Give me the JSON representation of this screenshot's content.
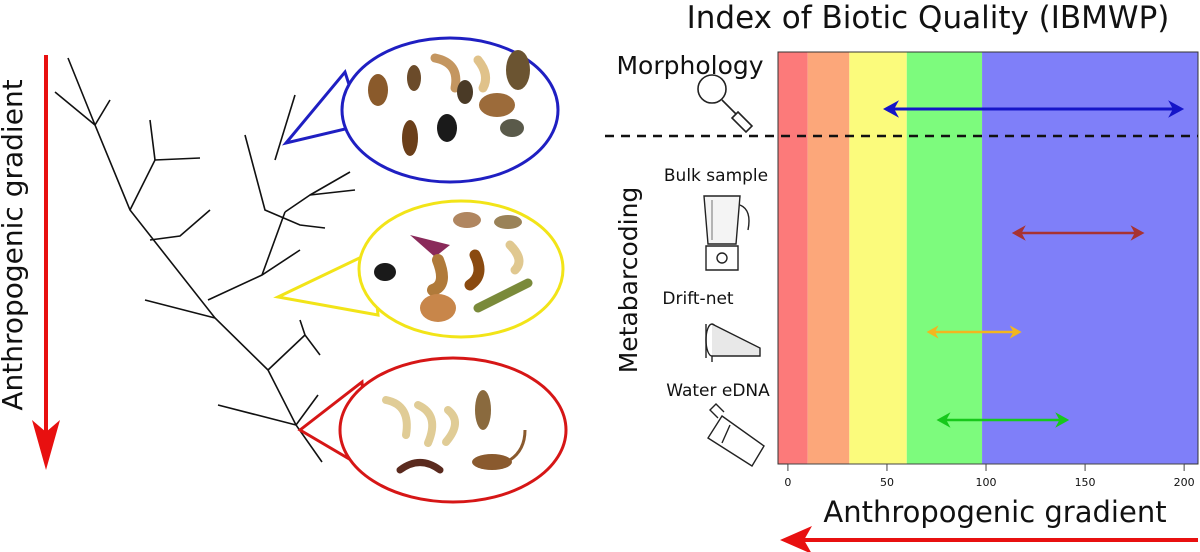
{
  "title": "Index of Biotic Quality (IBMWP)",
  "left_axis_label": "Anthropogenic gradient",
  "bottom_axis_label": "Anthropogenic gradient",
  "section_labels": {
    "morphology": "Morphology",
    "metabarcoding": "Metabarcoding"
  },
  "methods": {
    "bulk": "Bulk sample",
    "drift": "Drift-net",
    "edna": "Water eDNA"
  },
  "icons": [
    "magnifier-icon",
    "blender-icon",
    "drift-net-icon",
    "water-bottle-icon",
    "macroinvertebrate-icon"
  ],
  "colors": {
    "band_red": "#fc7a7a",
    "band_orange": "#fca77a",
    "band_yellow": "#fbfb7c",
    "band_green": "#7dfb7d",
    "band_blue": "#7f7ff9",
    "arrow_morphology": "#1515c8",
    "arrow_bulk": "#a83232",
    "arrow_drift": "#f2b61f",
    "arrow_edna": "#17c81b",
    "gradient_arrow": "#e81010",
    "oval_blue": "#1f1fc2",
    "oval_yellow": "#f2e418",
    "oval_red": "#d61616"
  },
  "chart_data": {
    "type": "range",
    "title": "Index of Biotic Quality (IBMWP)",
    "xlabel": "Anthropogenic gradient",
    "xlim": [
      -5,
      207
    ],
    "ticks": [
      0,
      50,
      100,
      150,
      200
    ],
    "tick_labels": [
      "0",
      "50",
      "100",
      "150",
      "200"
    ],
    "quality_bands": [
      {
        "from": -5,
        "to": 10,
        "color": "#fc7a7a"
      },
      {
        "from": 10,
        "to": 31,
        "color": "#fca77a"
      },
      {
        "from": 31,
        "to": 60,
        "color": "#fbfb7c"
      },
      {
        "from": 60,
        "to": 98,
        "color": "#7dfb7d"
      },
      {
        "from": 98,
        "to": 207,
        "color": "#7f7ff9"
      }
    ],
    "series": [
      {
        "name": "Morphology",
        "min": 48,
        "max": 200,
        "color": "#1515c8"
      },
      {
        "name": "Bulk sample",
        "min": 113,
        "max": 180,
        "color": "#a83232"
      },
      {
        "name": "Drift-net",
        "min": 70,
        "max": 118,
        "color": "#f2b61f"
      },
      {
        "name": "Water eDNA",
        "min": 75,
        "max": 142,
        "color": "#17c81b"
      }
    ]
  }
}
